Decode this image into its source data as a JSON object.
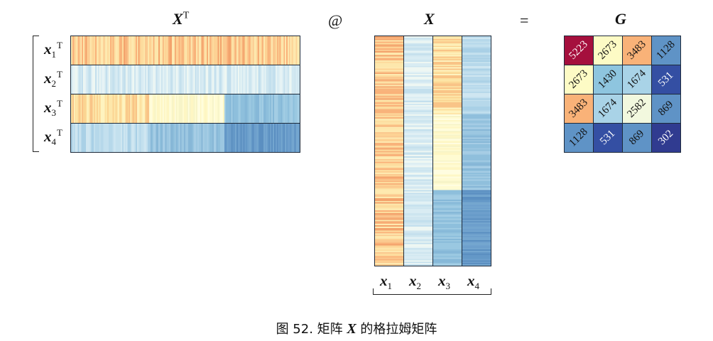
{
  "headers": {
    "xt_base": "X",
    "xt_sup": "T",
    "at": "@",
    "x": "X",
    "eq": "=",
    "g": "G"
  },
  "row_labels": [
    {
      "base": "x",
      "sub": "1",
      "sup": "T"
    },
    {
      "base": "x",
      "sub": "2",
      "sup": "T"
    },
    {
      "base": "x",
      "sub": "3",
      "sup": "T"
    },
    {
      "base": "x",
      "sub": "4",
      "sup": "T"
    }
  ],
  "col_labels": [
    {
      "base": "x",
      "sub": "1"
    },
    {
      "base": "x",
      "sub": "2"
    },
    {
      "base": "x",
      "sub": "3"
    },
    {
      "base": "x",
      "sub": "4"
    }
  ],
  "gram": {
    "values": [
      [
        "5223",
        "2673",
        "3483",
        "1128"
      ],
      [
        "2673",
        "1430",
        "1674",
        "531"
      ],
      [
        "3483",
        "1674",
        "2582",
        "869"
      ],
      [
        "1128",
        "531",
        "869",
        "302"
      ]
    ],
    "colors": [
      [
        "#a50f3d",
        "#fdfbc5",
        "#f9b278",
        "#5f93c6"
      ],
      [
        "#fdfbc5",
        "#8ec5df",
        "#a9d3e7",
        "#344fa3"
      ],
      [
        "#f9b278",
        "#a9d3e7",
        "#f2f8de",
        "#5f93c6"
      ],
      [
        "#5f93c6",
        "#344fa3",
        "#5f93c6",
        "#303b90"
      ]
    ],
    "text_colors": [
      [
        "#ffffff",
        "#111111",
        "#111111",
        "#111111"
      ],
      [
        "#111111",
        "#111111",
        "#111111",
        "#ffffff"
      ],
      [
        "#111111",
        "#111111",
        "#111111",
        "#111111"
      ],
      [
        "#111111",
        "#ffffff",
        "#111111",
        "#ffffff"
      ]
    ]
  },
  "strip_palettes": {
    "x1": [
      "#fbc98f",
      "#fddc9e",
      "#f8b47c",
      "#fde7ac",
      "#fab27a",
      "#fdd294",
      "#f3a36c",
      "#fee9b0"
    ],
    "x2": [
      "#d9ecf3",
      "#cde5ef",
      "#e6f3f5",
      "#c3dfed",
      "#eef7f3",
      "#d2e8f1"
    ],
    "x3_left": [
      "#fde7aa",
      "#fbd492",
      "#fef3bf",
      "#f9c487",
      "#fde09f"
    ],
    "x3_mid": [
      "#fffbd2",
      "#fef6c3",
      "#fffde0",
      "#f7f4c8"
    ],
    "x3_right": [
      "#8ebfdc",
      "#9ac8e1",
      "#86b8d8",
      "#a3cde4"
    ],
    "x4_left": [
      "#c3e0ee",
      "#b6d8ea",
      "#cfe6f1",
      "#a9d0e6"
    ],
    "x4_mid": [
      "#9cc7e1",
      "#8fbfdc",
      "#a6cde5",
      "#87b7d7"
    ],
    "x4_right": [
      "#6d9fcc",
      "#6498c7",
      "#74a6cf",
      "#5b8fc1"
    ]
  },
  "caption": {
    "prefix": "图 52. 矩阵 ",
    "bold": "X",
    "suffix": " 的格拉姆矩阵"
  }
}
